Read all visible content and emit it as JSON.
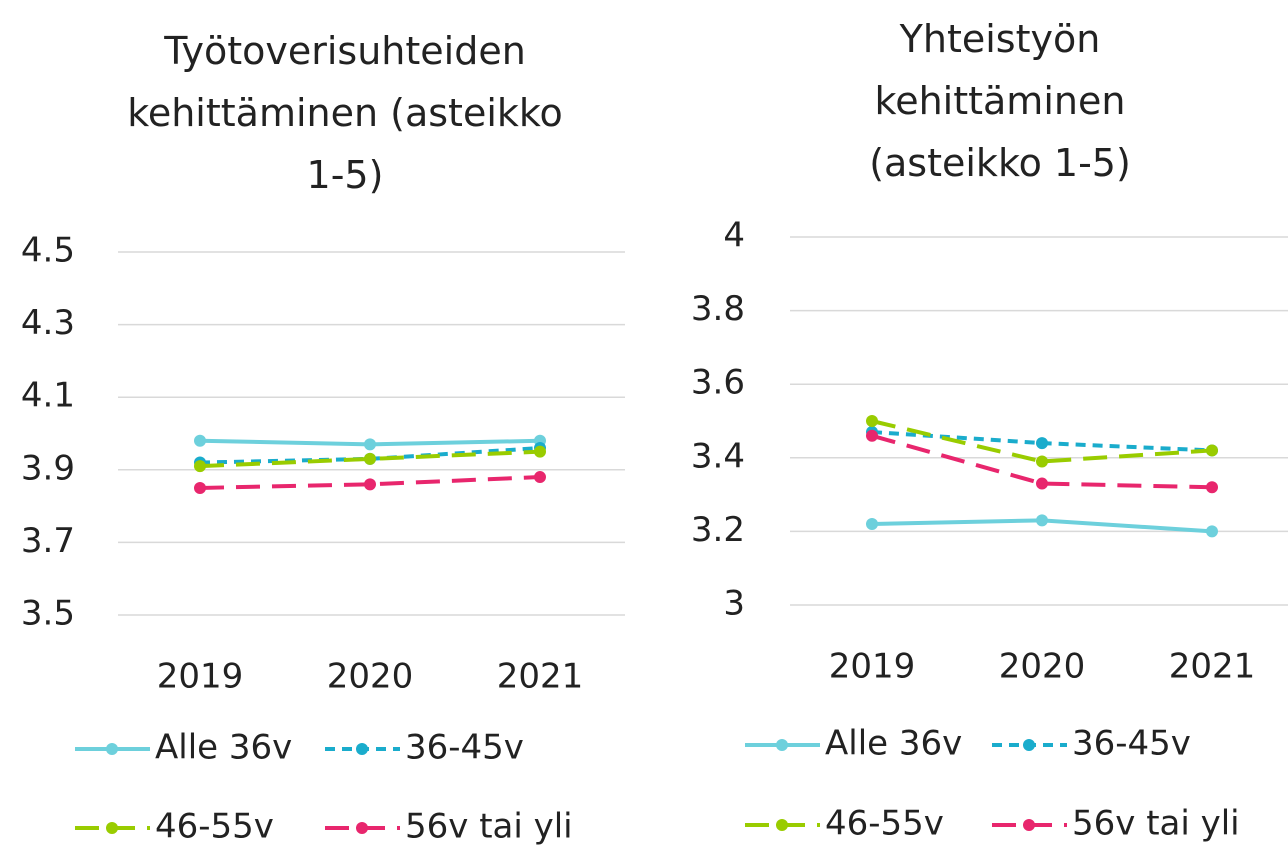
{
  "chart_data": [
    {
      "type": "line",
      "title": "Työtoverisuhteiden kehittäminen (asteikko 1-5)",
      "categories": [
        "2019",
        "2020",
        "2021"
      ],
      "series": [
        {
          "name": "Alle 36v",
          "color": "#6dd0dc",
          "dash": "solid",
          "values": [
            3.98,
            3.97,
            3.98
          ]
        },
        {
          "name": "36-45v",
          "color": "#1aaccc",
          "dash": "dash",
          "values": [
            3.92,
            3.93,
            3.96
          ]
        },
        {
          "name": "46-55v",
          "color": "#99cc00",
          "dash": "longdash",
          "values": [
            3.91,
            3.93,
            3.95
          ]
        },
        {
          "name": "56v tai yli",
          "color": "#e8266d",
          "dash": "longdash",
          "values": [
            3.85,
            3.86,
            3.88
          ]
        }
      ],
      "ylim": [
        3.5,
        4.5
      ],
      "yticks": [
        3.5,
        3.7,
        3.9,
        4.1,
        4.3,
        4.5
      ],
      "grid": true,
      "legend": "bottom"
    },
    {
      "type": "line",
      "title": "Yhteistyön kehittäminen (asteikko 1-5)",
      "categories": [
        "2019",
        "2020",
        "2021"
      ],
      "series": [
        {
          "name": "Alle 36v",
          "color": "#6dd0dc",
          "dash": "solid",
          "values": [
            3.22,
            3.23,
            3.2
          ]
        },
        {
          "name": "36-45v",
          "color": "#1aaccc",
          "dash": "dash",
          "values": [
            3.47,
            3.44,
            3.42
          ]
        },
        {
          "name": "46-55v",
          "color": "#99cc00",
          "dash": "longdash",
          "values": [
            3.5,
            3.39,
            3.42
          ]
        },
        {
          "name": "56v tai yli",
          "color": "#e8266d",
          "dash": "longdash",
          "values": [
            3.46,
            3.33,
            3.32
          ]
        }
      ],
      "ylim": [
        3,
        4
      ],
      "yticks": [
        3,
        3.2,
        3.4,
        3.6,
        3.8,
        4
      ],
      "grid": true,
      "legend": "bottom"
    }
  ]
}
